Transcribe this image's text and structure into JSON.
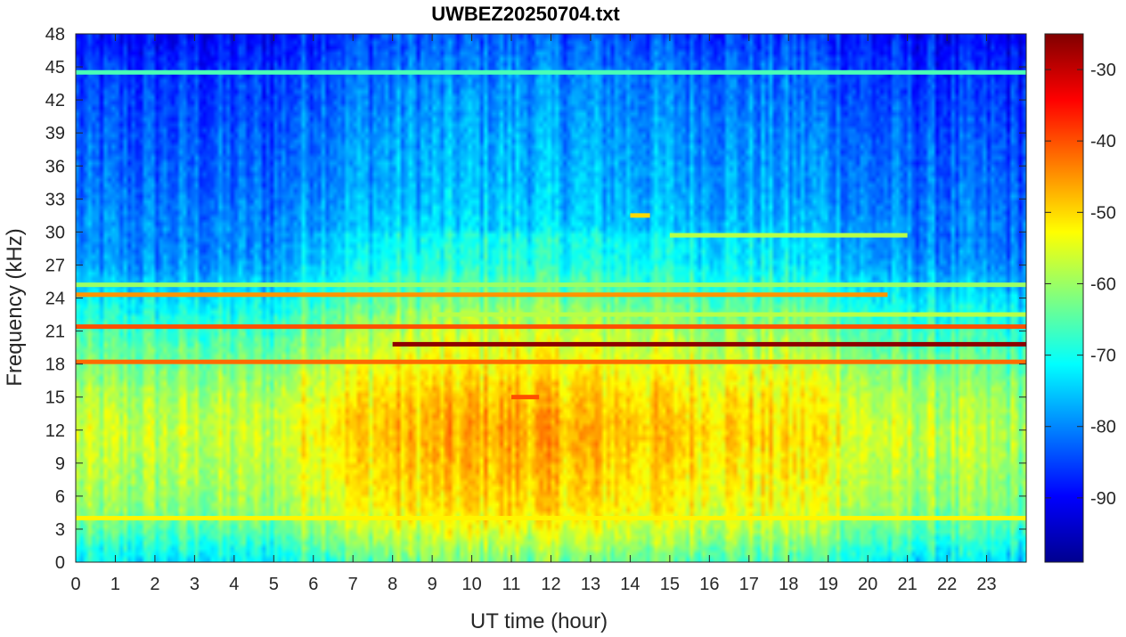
{
  "chart_data": {
    "type": "heatmap",
    "title": "UWBEZ20250704.txt",
    "xlabel": "UT time (hour)",
    "ylabel": "Frequency (kHz)",
    "xlim": [
      0,
      24
    ],
    "ylim": [
      0,
      48
    ],
    "x_ticks": [
      0,
      1,
      2,
      3,
      4,
      5,
      6,
      7,
      8,
      9,
      10,
      11,
      12,
      13,
      14,
      15,
      16,
      17,
      18,
      19,
      20,
      21,
      22,
      23
    ],
    "y_ticks": [
      0,
      3,
      6,
      9,
      12,
      15,
      18,
      21,
      24,
      27,
      30,
      33,
      36,
      39,
      42,
      45,
      48
    ],
    "colorbar": {
      "colormap": "jet",
      "clim": [
        -99,
        -25
      ],
      "ticks": [
        -90,
        -80,
        -70,
        -60,
        -50,
        -40,
        -30
      ]
    },
    "background_level_by_freq_khz": [
      {
        "freq": 0,
        "db": -70
      },
      {
        "freq": 1.5,
        "db": -66
      },
      {
        "freq": 3,
        "db": -62
      },
      {
        "freq": 5,
        "db": -58
      },
      {
        "freq": 8,
        "db": -56
      },
      {
        "freq": 12,
        "db": -54
      },
      {
        "freq": 15,
        "db": -56
      },
      {
        "freq": 18,
        "db": -60
      },
      {
        "freq": 21,
        "db": -64
      },
      {
        "freq": 24,
        "db": -70
      },
      {
        "freq": 27,
        "db": -76
      },
      {
        "freq": 33,
        "db": -80
      },
      {
        "freq": 39,
        "db": -82
      },
      {
        "freq": 45,
        "db": -85
      },
      {
        "freq": 48,
        "db": -88
      }
    ],
    "daytime_offset_by_hour": [
      {
        "hour": 0,
        "db": -3
      },
      {
        "hour": 5,
        "db": -3
      },
      {
        "hour": 6,
        "db": 3
      },
      {
        "hour": 8,
        "db": 6
      },
      {
        "hour": 11,
        "db": 8
      },
      {
        "hour": 14,
        "db": 6
      },
      {
        "hour": 19,
        "db": 3
      },
      {
        "hour": 20,
        "db": -2
      },
      {
        "hour": 24,
        "db": -5
      }
    ],
    "narrowband_lines": [
      {
        "freq_khz": 19.8,
        "start_hour": 8.0,
        "end_hour": 24.0,
        "db": -26
      },
      {
        "freq_khz": 21.4,
        "start_hour": 0.0,
        "end_hour": 24.0,
        "db": -40
      },
      {
        "freq_khz": 18.2,
        "start_hour": 0.0,
        "end_hour": 24.0,
        "db": -42
      },
      {
        "freq_khz": 24.3,
        "start_hour": 0.0,
        "end_hour": 20.5,
        "db": -45
      },
      {
        "freq_khz": 25.2,
        "start_hour": 0.0,
        "end_hour": 24.0,
        "db": -60
      },
      {
        "freq_khz": 22.5,
        "start_hour": 9.0,
        "end_hour": 24.0,
        "db": -58
      },
      {
        "freq_khz": 4.0,
        "start_hour": 0.0,
        "end_hour": 24.0,
        "db": -52
      },
      {
        "freq_khz": 44.5,
        "start_hour": 0.0,
        "end_hour": 24.0,
        "db": -66
      },
      {
        "freq_khz": 29.7,
        "start_hour": 15.0,
        "end_hour": 21.0,
        "db": -58
      },
      {
        "freq_khz": 15.0,
        "start_hour": 11.0,
        "end_hour": 11.7,
        "db": -40
      },
      {
        "freq_khz": 31.5,
        "start_hour": 14.0,
        "end_hour": 14.5,
        "db": -50
      }
    ],
    "grid": false,
    "legend": "colorbar-right"
  }
}
